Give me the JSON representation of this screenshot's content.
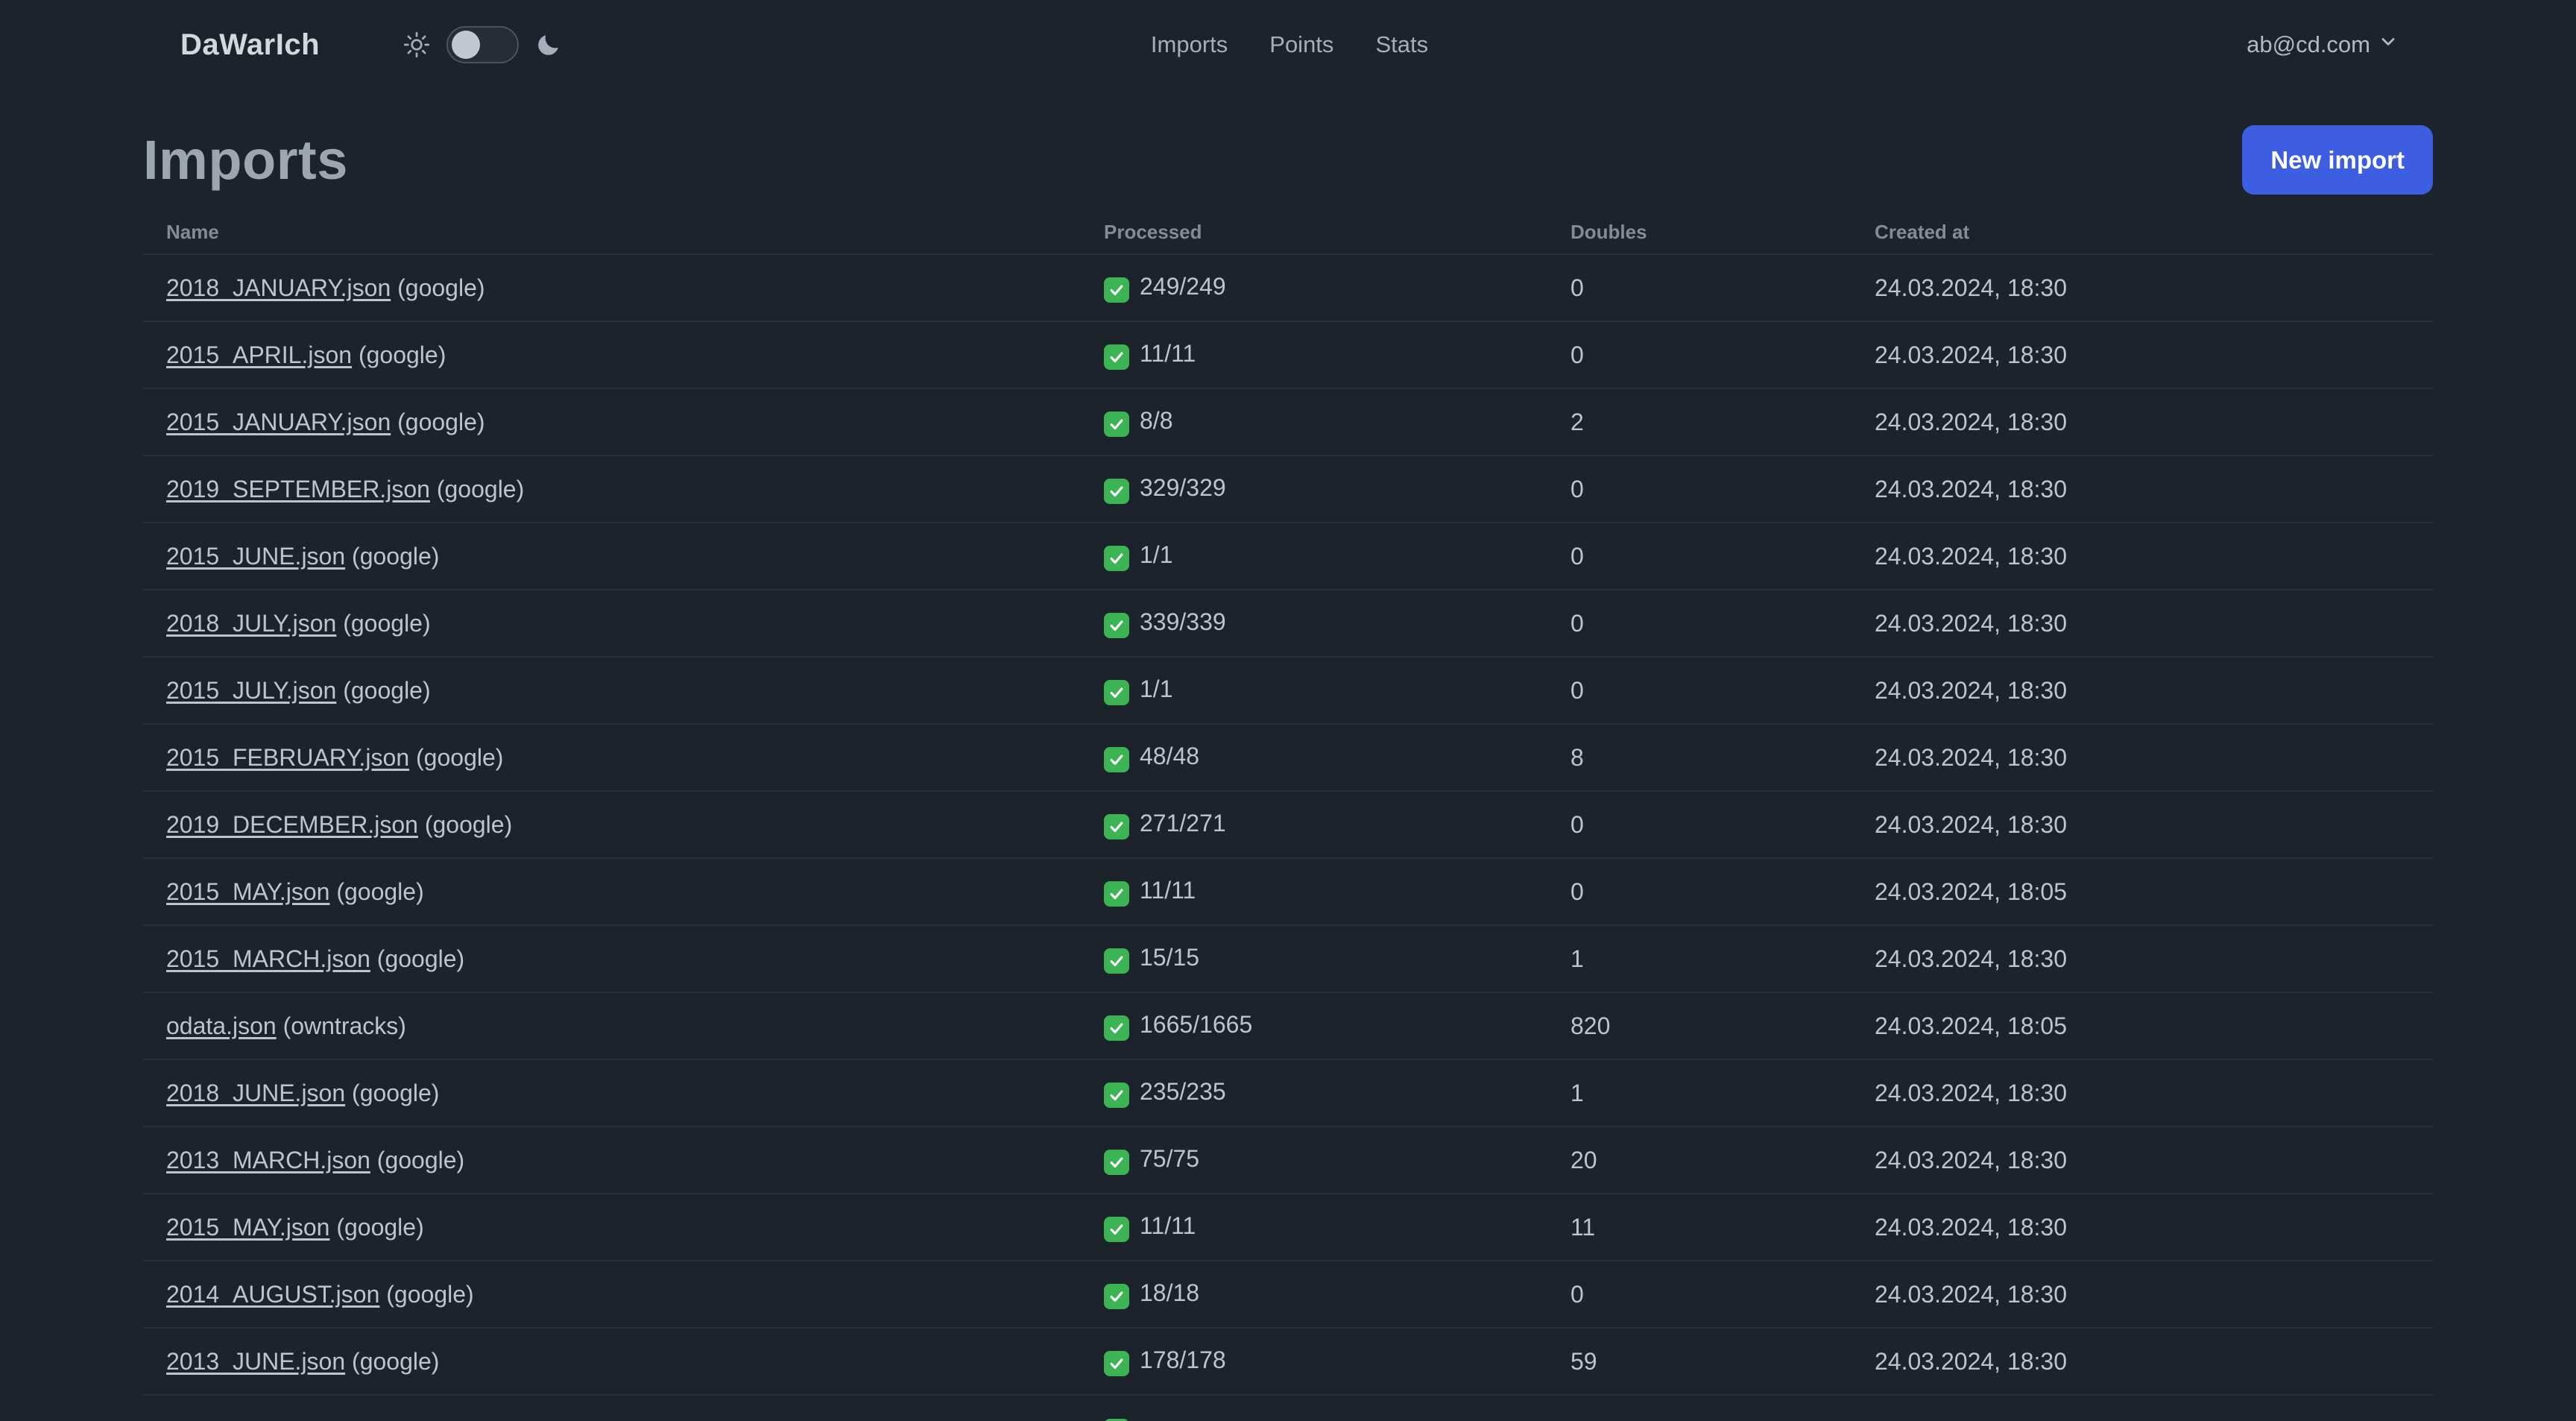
{
  "navbar": {
    "brand": "DaWarIch",
    "nav_items": [
      "Imports",
      "Points",
      "Stats"
    ],
    "user_menu_label": "ab@cd.com",
    "theme_toggle": {
      "left_icon": "sun-icon",
      "right_icon": "moon-icon",
      "state": "off"
    }
  },
  "page": {
    "title": "Imports",
    "new_import_button": "New import"
  },
  "table": {
    "columns": [
      "Name",
      "Processed",
      "Doubles",
      "Created at"
    ],
    "rows": [
      {
        "name": "2018_JANUARY.json",
        "source": "(google)",
        "status": "success",
        "processed": "249/249",
        "doubles": "0",
        "created_at": "24.03.2024, 18:30"
      },
      {
        "name": "2015_APRIL.json",
        "source": "(google)",
        "status": "success",
        "processed": "11/11",
        "doubles": "0",
        "created_at": "24.03.2024, 18:30"
      },
      {
        "name": "2015_JANUARY.json",
        "source": "(google)",
        "status": "success",
        "processed": "8/8",
        "doubles": "2",
        "created_at": "24.03.2024, 18:30"
      },
      {
        "name": "2019_SEPTEMBER.json",
        "source": "(google)",
        "status": "success",
        "processed": "329/329",
        "doubles": "0",
        "created_at": "24.03.2024, 18:30"
      },
      {
        "name": "2015_JUNE.json",
        "source": "(google)",
        "status": "success",
        "processed": "1/1",
        "doubles": "0",
        "created_at": "24.03.2024, 18:30"
      },
      {
        "name": "2018_JULY.json",
        "source": "(google)",
        "status": "success",
        "processed": "339/339",
        "doubles": "0",
        "created_at": "24.03.2024, 18:30"
      },
      {
        "name": "2015_JULY.json",
        "source": "(google)",
        "status": "success",
        "processed": "1/1",
        "doubles": "0",
        "created_at": "24.03.2024, 18:30"
      },
      {
        "name": "2015_FEBRUARY.json",
        "source": "(google)",
        "status": "success",
        "processed": "48/48",
        "doubles": "8",
        "created_at": "24.03.2024, 18:30"
      },
      {
        "name": "2019_DECEMBER.json",
        "source": "(google)",
        "status": "success",
        "processed": "271/271",
        "doubles": "0",
        "created_at": "24.03.2024, 18:30"
      },
      {
        "name": "2015_MAY.json",
        "source": "(google)",
        "status": "success",
        "processed": "11/11",
        "doubles": "0",
        "created_at": "24.03.2024, 18:05"
      },
      {
        "name": "2015_MARCH.json",
        "source": "(google)",
        "status": "success",
        "processed": "15/15",
        "doubles": "1",
        "created_at": "24.03.2024, 18:30"
      },
      {
        "name": "odata.json",
        "source": "(owntracks)",
        "status": "success",
        "processed": "1665/1665",
        "doubles": "820",
        "created_at": "24.03.2024, 18:05"
      },
      {
        "name": "2018_JUNE.json",
        "source": "(google)",
        "status": "success",
        "processed": "235/235",
        "doubles": "1",
        "created_at": "24.03.2024, 18:30"
      },
      {
        "name": "2013_MARCH.json",
        "source": "(google)",
        "status": "success",
        "processed": "75/75",
        "doubles": "20",
        "created_at": "24.03.2024, 18:30"
      },
      {
        "name": "2015_MAY.json",
        "source": "(google)",
        "status": "success",
        "processed": "11/11",
        "doubles": "11",
        "created_at": "24.03.2024, 18:30"
      },
      {
        "name": "2014_AUGUST.json",
        "source": "(google)",
        "status": "success",
        "processed": "18/18",
        "doubles": "0",
        "created_at": "24.03.2024, 18:30"
      },
      {
        "name": "2013_JUNE.json",
        "source": "(google)",
        "status": "success",
        "processed": "178/178",
        "doubles": "59",
        "created_at": "24.03.2024, 18:30"
      },
      {
        "name": "",
        "source": "",
        "status": "success",
        "processed": "",
        "doubles": "",
        "created_at": "",
        "partial": true
      }
    ]
  },
  "colors": {
    "background": "#1d232a",
    "primary_button": "#3e5ee2",
    "success_check": "#3cb454",
    "row_divider": "#29303a",
    "text": "#bfc4cc"
  }
}
